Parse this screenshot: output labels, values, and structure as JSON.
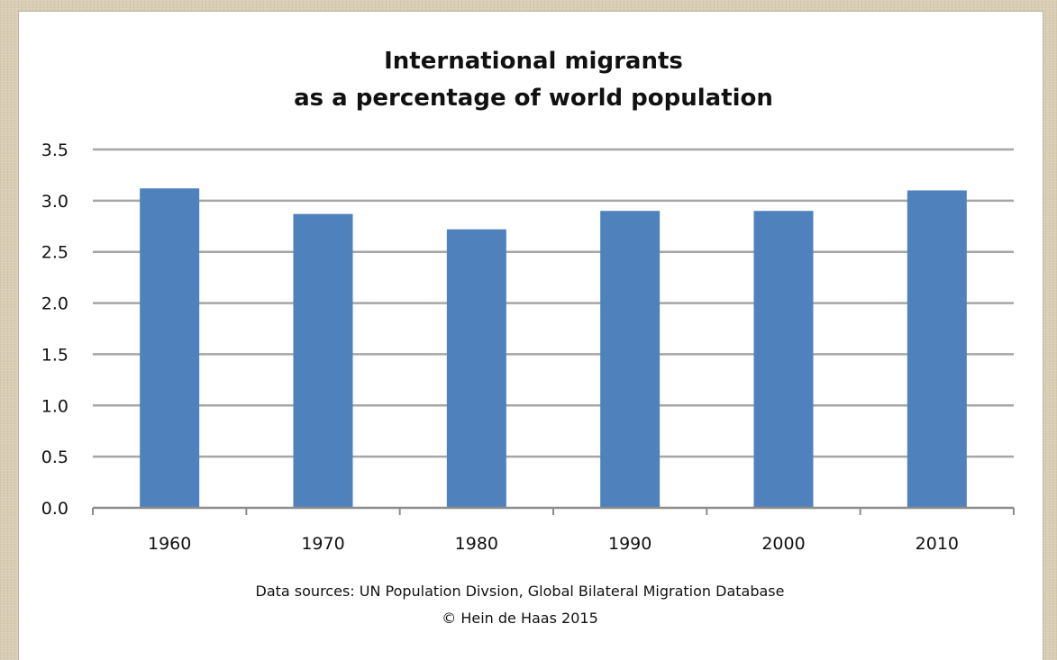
{
  "chart_data": {
    "type": "bar",
    "title": [
      "International migrants",
      "as a percentage of world population"
    ],
    "categories": [
      "1960",
      "1970",
      "1980",
      "1990",
      "2000",
      "2010"
    ],
    "values": [
      3.12,
      2.87,
      2.72,
      2.9,
      2.9,
      3.1
    ],
    "ylim": [
      0,
      3.5
    ],
    "yticks": [
      "0.0",
      "0.5",
      "1.0",
      "1.5",
      "2.0",
      "2.5",
      "3.0",
      "3.5"
    ],
    "xlabel": "",
    "ylabel": "",
    "grid": true,
    "legend": "none",
    "bar_color": "#4f81bd",
    "source": "Data sources: UN  Population Divsion, Global Bilateral Migration Database",
    "copyright": "© Hein de Haas 2015"
  }
}
